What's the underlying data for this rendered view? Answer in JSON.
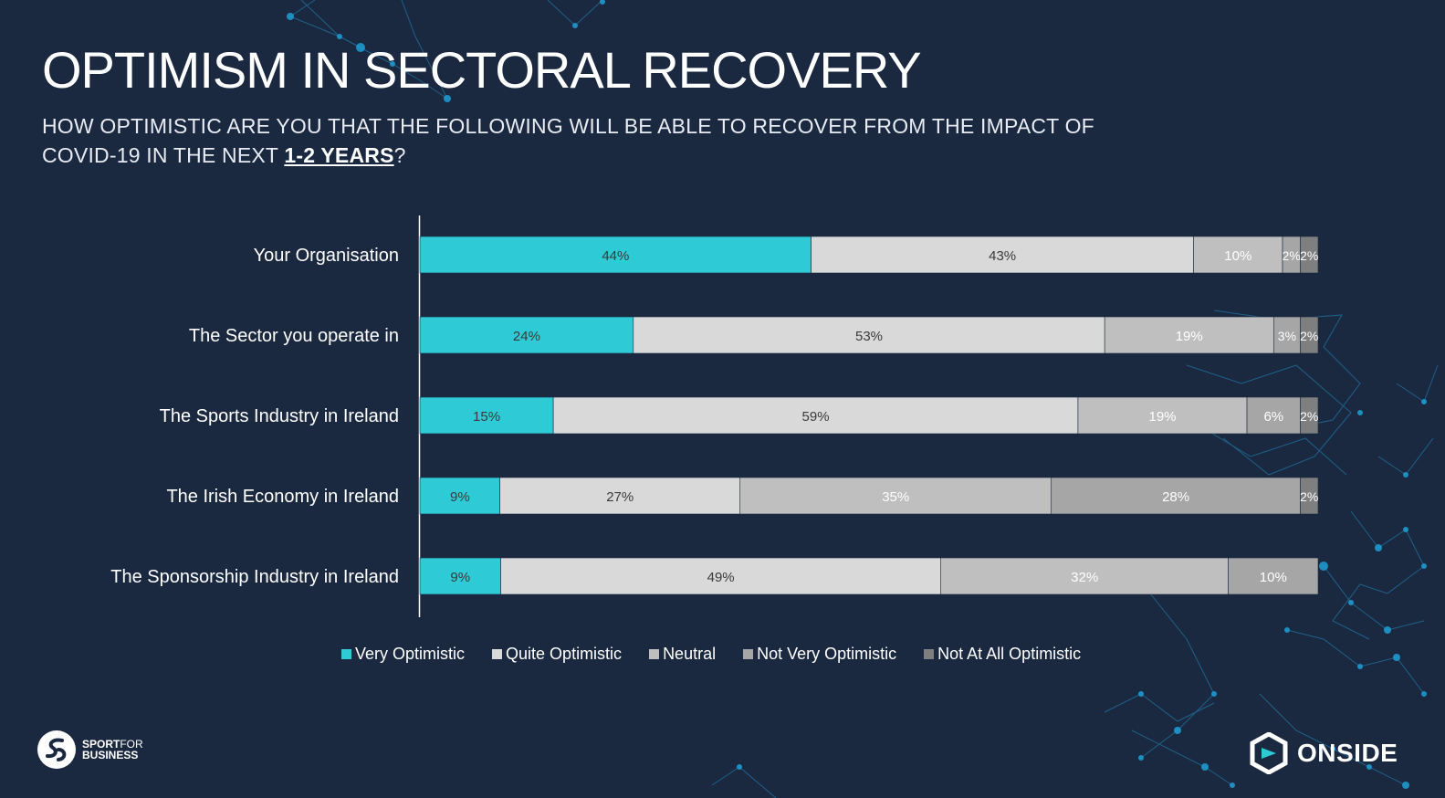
{
  "slide": {
    "title": "OPTIMISM IN SECTORAL RECOVERY",
    "subtitle_prefix": "HOW OPTIMISTIC ARE YOU THAT THE FOLLOWING WILL BE ABLE TO RECOVER FROM THE IMPACT OF COVID-19 IN THE NEXT ",
    "subtitle_emphasis": "1-2 YEARS",
    "subtitle_suffix": "?"
  },
  "chart_data": {
    "type": "bar",
    "orientation": "horizontal",
    "stacked": true,
    "categories": [
      "Your Organisation",
      "The Sector you operate in",
      "The Sports Industry in Ireland",
      "The Irish Economy in Ireland",
      "The Sponsorship Industry in Ireland"
    ],
    "series": [
      {
        "name": "Very Optimistic",
        "color": "#2ecad6",
        "label_color": "#3a3a3a",
        "values": [
          44,
          24,
          15,
          9,
          9
        ]
      },
      {
        "name": "Quite Optimistic",
        "color": "#d9d9d9",
        "label_color": "#3a3a3a",
        "values": [
          43,
          53,
          59,
          27,
          49
        ]
      },
      {
        "name": "Neutral",
        "color": "#bfbfbf",
        "label_color": "#ffffff",
        "values": [
          10,
          19,
          19,
          35,
          32
        ]
      },
      {
        "name": "Not Very Optimistic",
        "color": "#a6a6a6",
        "label_color": "#ffffff",
        "values": [
          2,
          3,
          6,
          28,
          10
        ]
      },
      {
        "name": "Not At All Optimistic",
        "color": "#7f7f7f",
        "label_color": "#ffffff",
        "values": [
          2,
          2,
          2,
          2,
          null
        ]
      }
    ],
    "value_suffix": "%",
    "legend_position": "bottom",
    "grid": false
  },
  "logos": {
    "left_line1": "SPORT",
    "left_line1_light": "FOR",
    "left_line2": "BUSINESS",
    "right": "ONSIDE"
  },
  "colors": {
    "background": "#1b2940",
    "accent": "#2ecad6",
    "network": "#1e9fd6"
  }
}
